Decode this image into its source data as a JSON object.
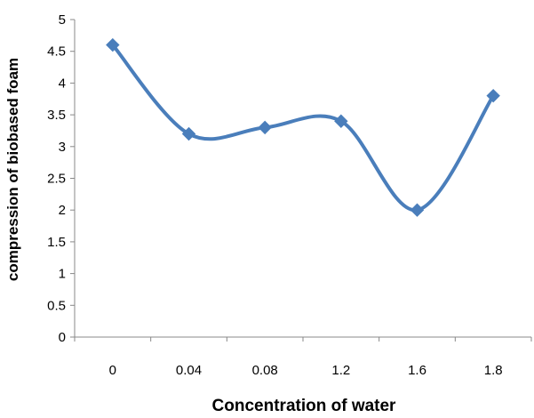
{
  "chart_data": {
    "type": "line",
    "categories": [
      "0",
      "0.04",
      "0.08",
      "1.2",
      "1.6",
      "1.8"
    ],
    "series": [
      {
        "values": [
          4.6,
          3.2,
          3.3,
          3.4,
          2.0,
          3.8
        ],
        "color": "#4a7ebb",
        "marker": "diamond",
        "smooth": true
      }
    ],
    "xlabel": "Concentration of water",
    "ylabel": "compression of biobased foam",
    "ylim": [
      0,
      5
    ],
    "yticks": [
      "0",
      "0.5",
      "1",
      "1.5",
      "2",
      "2.5",
      "3",
      "3.5",
      "4",
      "4.5",
      "5"
    ],
    "grid": false,
    "legend": "none"
  }
}
